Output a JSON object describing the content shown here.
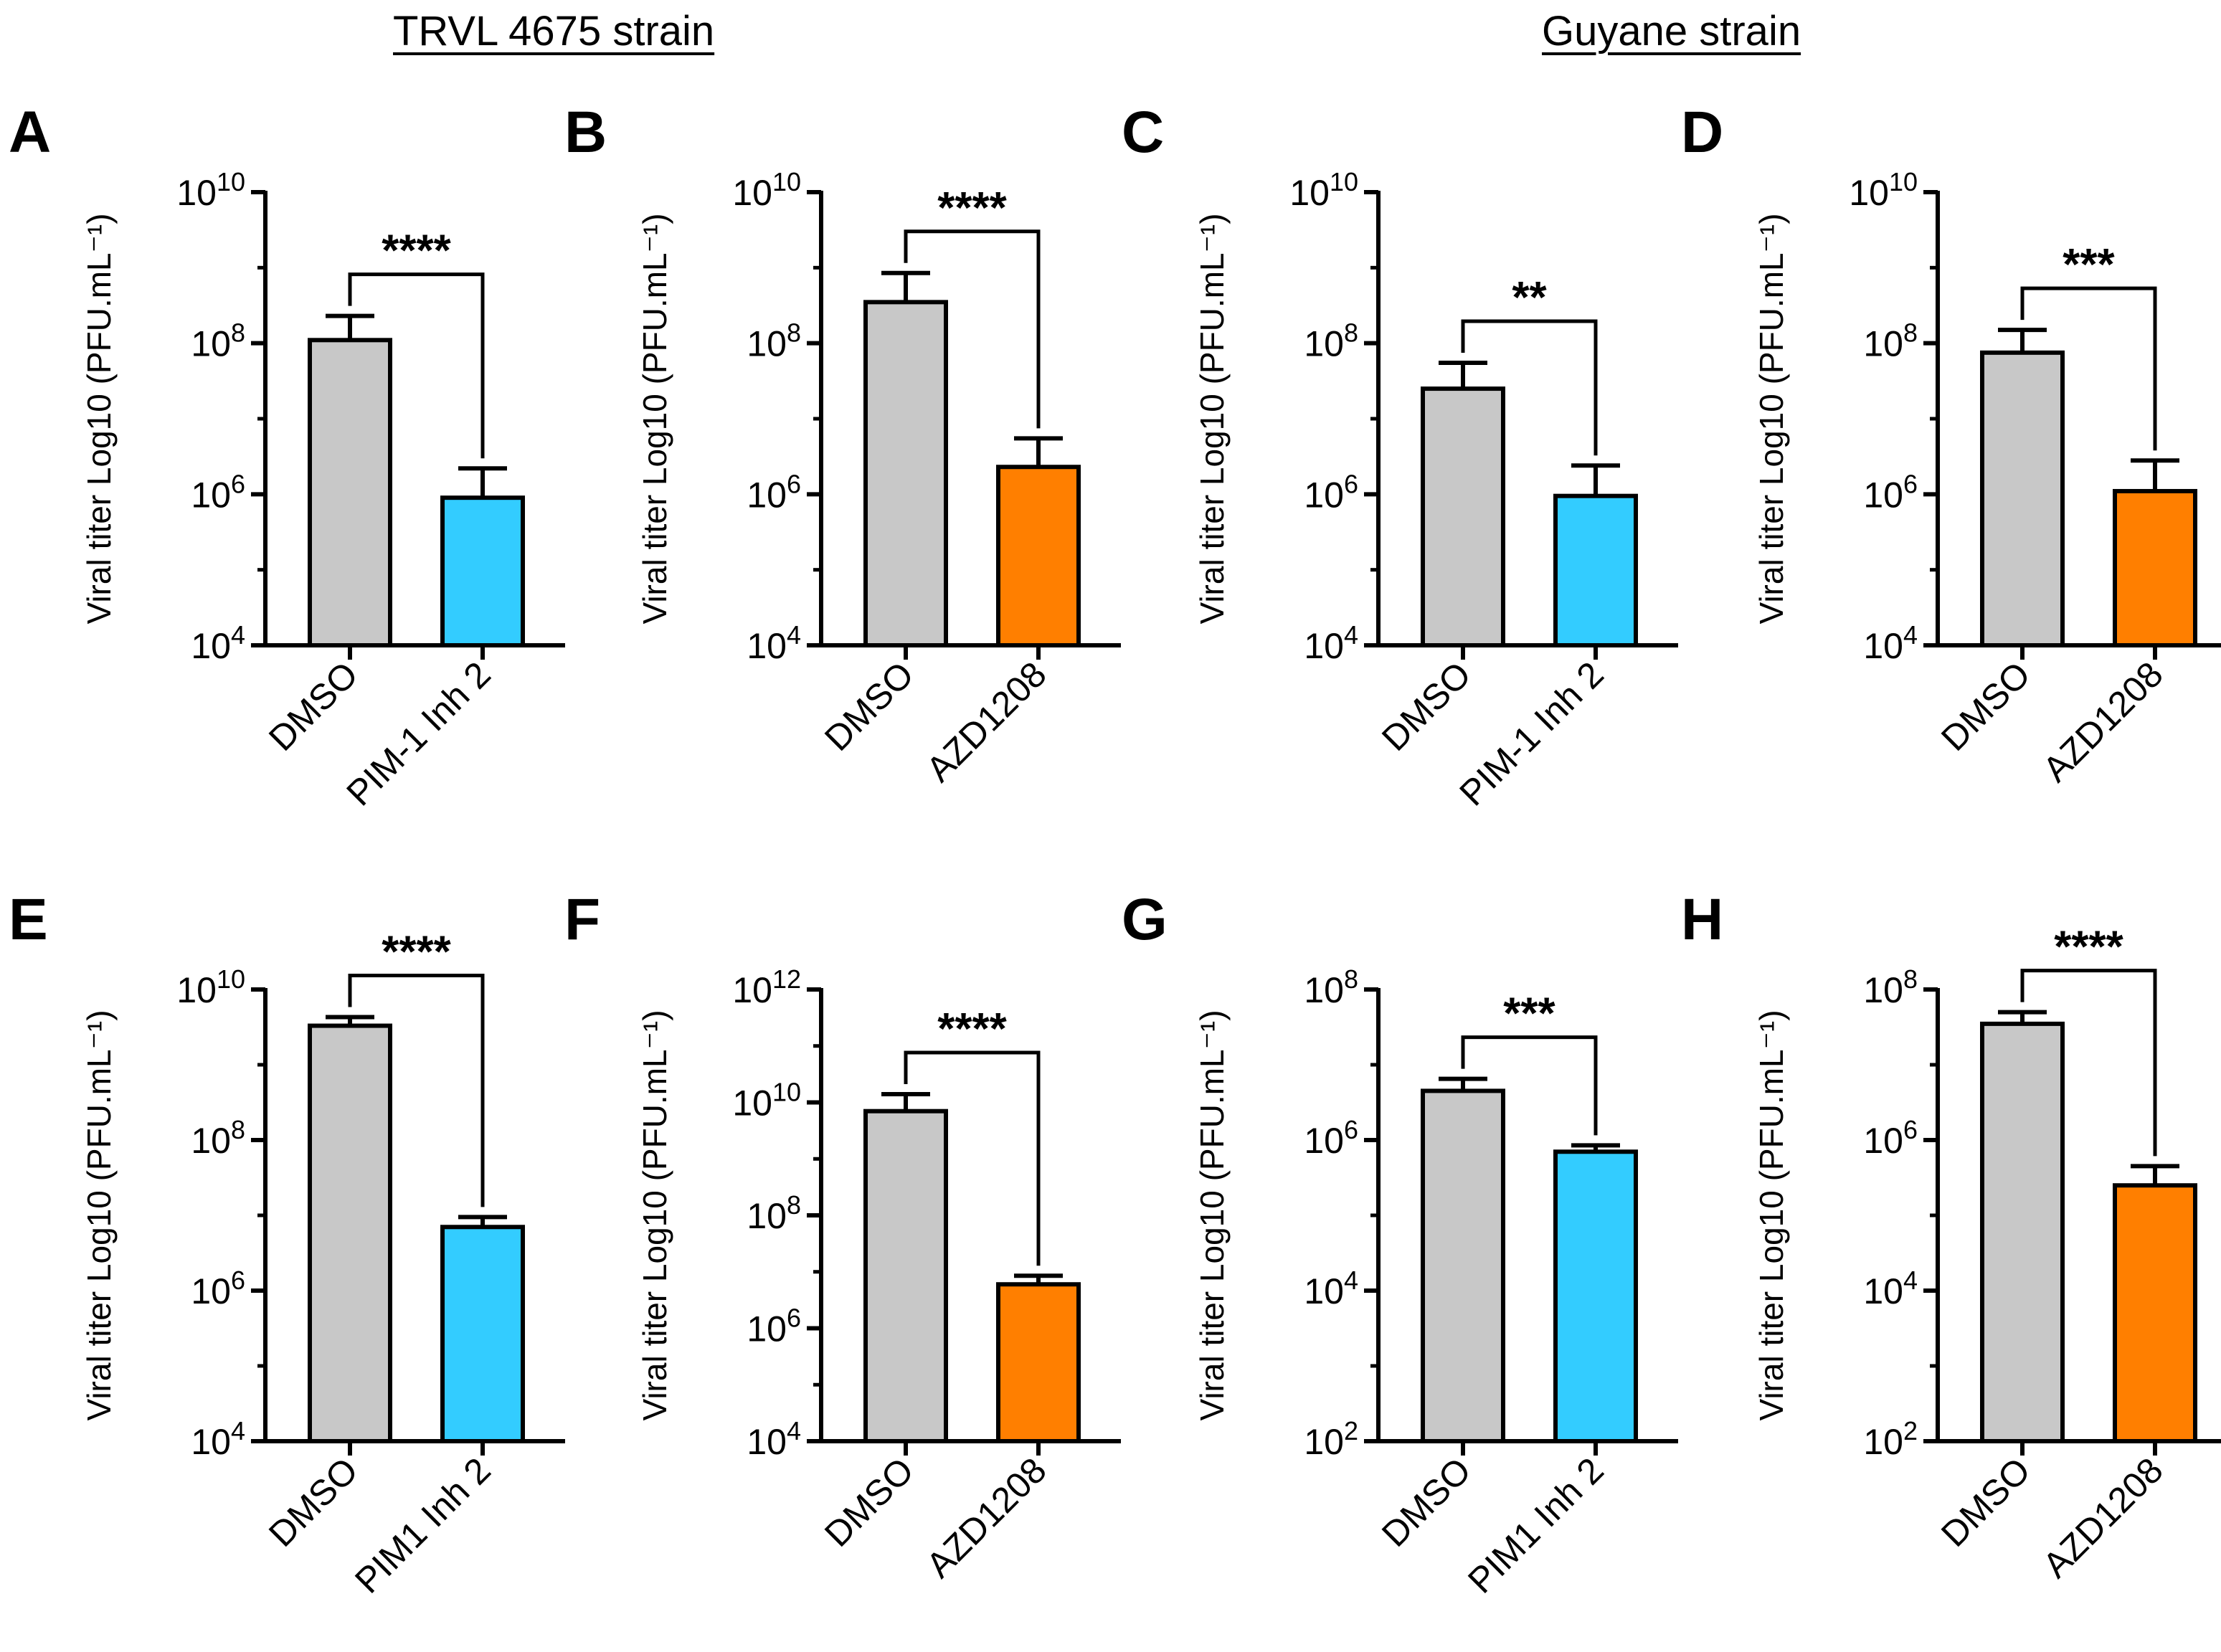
{
  "headers": {
    "left": "TRVL 4675 strain",
    "right": "Guyane strain"
  },
  "colors": {
    "dmso": "#c8c8c8",
    "pim1": "#33ccff",
    "azd1208": "#ff7f00",
    "outline": "#000000"
  },
  "chart_data": [
    {
      "panel": "A",
      "type": "bar",
      "strain": "TRVL 4675 strain",
      "ylabel": "Viral titer Log10 (PFU.mL⁻¹)",
      "yscale": "log",
      "ylim": [
        10000,
        10000000000
      ],
      "yticks": [
        "10⁴",
        "10⁶",
        "10⁸",
        "10¹⁰"
      ],
      "categories": [
        "DMSO",
        "PIM-1 Inh 2"
      ],
      "values": [
        110000000,
        900000
      ],
      "errors": [
        230000000,
        2200000
      ],
      "fills": [
        "dmso",
        "pim1"
      ],
      "significance": "****"
    },
    {
      "panel": "B",
      "type": "bar",
      "strain": "TRVL 4675 strain",
      "ylabel": "Viral titer Log10 (PFU.mL⁻¹)",
      "yscale": "log",
      "ylim": [
        10000,
        10000000000
      ],
      "yticks": [
        "10⁴",
        "10⁶",
        "10⁸",
        "10¹⁰"
      ],
      "categories": [
        "DMSO",
        "AZD1208"
      ],
      "values": [
        350000000,
        2300000
      ],
      "errors": [
        850000000,
        5500000
      ],
      "fills": [
        "dmso",
        "azd1208"
      ],
      "significance": "****"
    },
    {
      "panel": "C",
      "type": "bar",
      "strain": "Guyane strain",
      "ylabel": "Viral titer Log10 (PFU.mL⁻¹)",
      "yscale": "log",
      "ylim": [
        10000,
        10000000000
      ],
      "yticks": [
        "10⁴",
        "10⁶",
        "10⁸",
        "10¹⁰"
      ],
      "categories": [
        "DMSO",
        "PIM-1 Inh 2"
      ],
      "values": [
        25000000,
        950000
      ],
      "errors": [
        55000000,
        2400000
      ],
      "fills": [
        "dmso",
        "pim1"
      ],
      "significance": "**"
    },
    {
      "panel": "D",
      "type": "bar",
      "strain": "Guyane strain",
      "ylabel": "Viral titer Log10 (PFU.mL⁻¹)",
      "yscale": "log",
      "ylim": [
        10000,
        10000000000
      ],
      "yticks": [
        "10⁴",
        "10⁶",
        "10⁸",
        "10¹⁰"
      ],
      "categories": [
        "DMSO",
        "AZD1208"
      ],
      "values": [
        75000000,
        1100000
      ],
      "errors": [
        150000000,
        2800000
      ],
      "fills": [
        "dmso",
        "azd1208"
      ],
      "significance": "***"
    },
    {
      "panel": "E",
      "type": "bar",
      "strain": "TRVL 4675 strain",
      "ylabel": "Viral titer Log10 (PFU.mL⁻¹)",
      "yscale": "log",
      "ylim": [
        10000,
        10000000000
      ],
      "yticks": [
        "10⁴",
        "10⁶",
        "10⁸",
        "10¹⁰"
      ],
      "categories": [
        "DMSO",
        "PIM1 Inh 2"
      ],
      "values": [
        3300000000,
        7000000
      ],
      "errors": [
        4300000000,
        9500000
      ],
      "fills": [
        "dmso",
        "pim1"
      ],
      "significance": "****"
    },
    {
      "panel": "F",
      "type": "bar",
      "strain": "TRVL 4675 strain",
      "ylabel": "Viral titer Log10 (PFU.mL⁻¹)",
      "yscale": "log",
      "ylim": [
        10000,
        1000000000000
      ],
      "yticks": [
        "10⁴",
        "10⁶",
        "10⁸",
        "10¹⁰",
        "10¹²"
      ],
      "categories": [
        "DMSO",
        "AZD1208"
      ],
      "values": [
        7000000000,
        6000000
      ],
      "errors": [
        14000000000,
        8500000
      ],
      "fills": [
        "dmso",
        "azd1208"
      ],
      "significance": "****"
    },
    {
      "panel": "G",
      "type": "bar",
      "strain": "Guyane strain",
      "ylabel": "Viral titer Log10 (PFU.mL⁻¹)",
      "yscale": "log",
      "ylim": [
        100,
        100000000
      ],
      "yticks": [
        "10²",
        "10⁴",
        "10⁶",
        "10⁸"
      ],
      "categories": [
        "DMSO",
        "PIM1 Inh 2"
      ],
      "values": [
        4500000,
        700000
      ],
      "errors": [
        6500000,
        850000
      ],
      "fills": [
        "dmso",
        "pim1"
      ],
      "significance": "***"
    },
    {
      "panel": "H",
      "type": "bar",
      "strain": "Guyane strain",
      "ylabel": "Viral titer Log10 (PFU.mL⁻¹)",
      "yscale": "log",
      "ylim": [
        100,
        100000000
      ],
      "yticks": [
        "10²",
        "10⁴",
        "10⁶",
        "10⁸"
      ],
      "categories": [
        "DMSO",
        "AZD1208"
      ],
      "values": [
        35000000,
        250000
      ],
      "errors": [
        50000000,
        450000
      ],
      "fills": [
        "dmso",
        "azd1208"
      ],
      "significance": "****"
    }
  ]
}
